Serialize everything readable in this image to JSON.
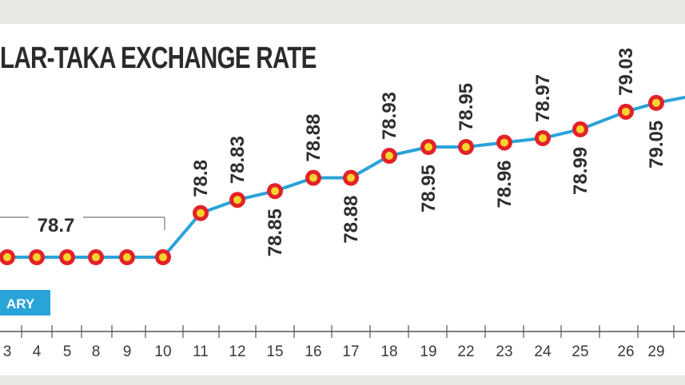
{
  "colors": {
    "line": "#2aa3d9",
    "marker_outer": "#e32128",
    "marker_inner": "#f7d52d",
    "banner": "#2aa3d9",
    "text": "#2e2e2e",
    "axis": "#555555"
  },
  "chart_data": {
    "type": "line",
    "title": "LAR-TAKA EXCHANGE RATE",
    "month_label": "ARY",
    "categories": [
      "3",
      "4",
      "5",
      "8",
      "9",
      "10",
      "11",
      "12",
      "15",
      "16",
      "17",
      "18",
      "19",
      "22",
      "23",
      "24",
      "25",
      "26",
      "29"
    ],
    "values": [
      78.7,
      78.7,
      78.7,
      78.7,
      78.7,
      78.7,
      78.8,
      78.83,
      78.85,
      78.88,
      78.88,
      78.93,
      78.95,
      78.95,
      78.96,
      78.97,
      78.99,
      79.03,
      79.05
    ],
    "data_labels": [
      "",
      "",
      "",
      "",
      "",
      "",
      "78.8",
      "78.83",
      "78.85",
      "78.88",
      "78.88",
      "78.93",
      "78.95",
      "78.95",
      "78.96",
      "78.97",
      "78.99",
      "79.03",
      "79.05"
    ],
    "label_positions": [
      "",
      "",
      "",
      "",
      "",
      "",
      "above",
      "above",
      "below",
      "above",
      "below",
      "above",
      "below",
      "above",
      "below",
      "above",
      "below",
      "above",
      "below"
    ],
    "flat_label": "78.7",
    "xlabel": "",
    "ylabel": "",
    "grid": false
  }
}
